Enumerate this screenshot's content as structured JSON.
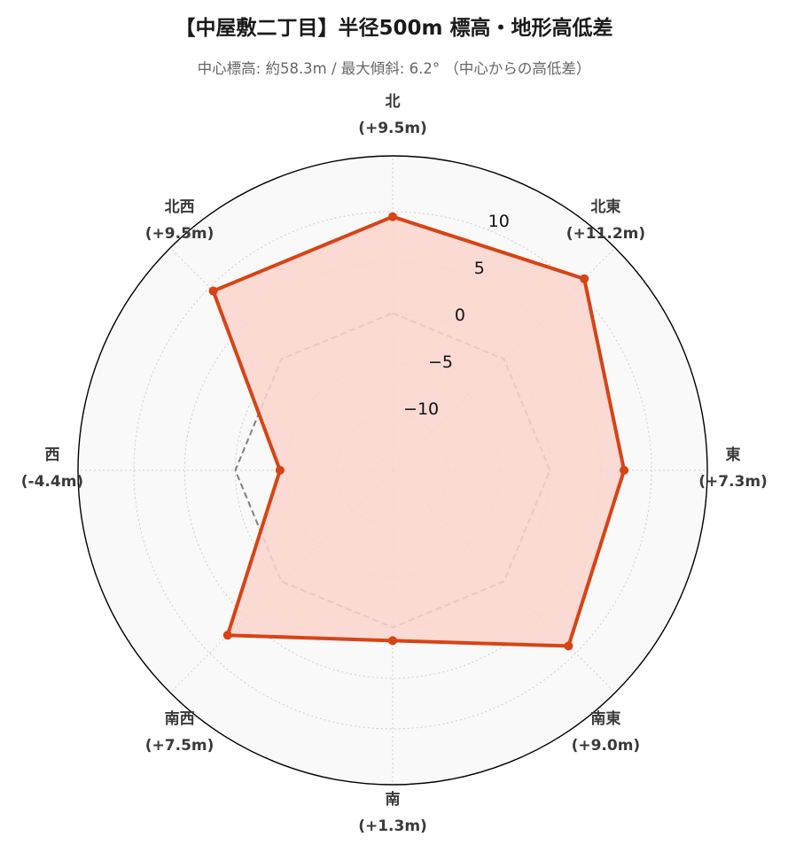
{
  "title": "【中屋敷二丁目】半径500m 標高・地形高低差",
  "subtitle": "中心標高: 約58.3m / 最大傾斜: 6.2° （中心からの高低差）",
  "chart_data": {
    "type": "radar",
    "title": "【中屋敷二丁目】半径500m 標高・地形高低差",
    "subtitle": "中心標高: 約58.3m / 最大傾斜: 6.2° （中心からの高低差）",
    "center_elevation_m": 58.3,
    "max_slope_deg": 6.2,
    "directions": [
      {
        "name": "北",
        "value": 9.5,
        "label": "(+9.5m)"
      },
      {
        "name": "北東",
        "value": 11.2,
        "label": "(+11.2m)"
      },
      {
        "name": "東",
        "value": 7.3,
        "label": "(+7.3m)"
      },
      {
        "name": "南東",
        "value": 9.0,
        "label": "(+9.0m)"
      },
      {
        "name": "南",
        "value": 1.3,
        "label": "(+1.3m)"
      },
      {
        "name": "南西",
        "value": 7.5,
        "label": "(+7.5m)"
      },
      {
        "name": "西",
        "value": -4.4,
        "label": "(-4.4m)"
      },
      {
        "name": "北西",
        "value": 9.5,
        "label": "(+9.5m)"
      }
    ],
    "reference_value": 0,
    "rlim": [
      -15.5,
      15.5
    ],
    "rticks": [
      -10,
      -5,
      0,
      5,
      10
    ],
    "rtick_labels": [
      "−10",
      "−5",
      "0",
      "5",
      "10"
    ],
    "grid": true,
    "colors": {
      "series_line": "#d84315",
      "series_fill": "#fbd5cd",
      "reference_line": "#808080",
      "plot_background": "#f9f9f9",
      "grid": "#cccccc",
      "outer_circle": "#000000"
    }
  }
}
